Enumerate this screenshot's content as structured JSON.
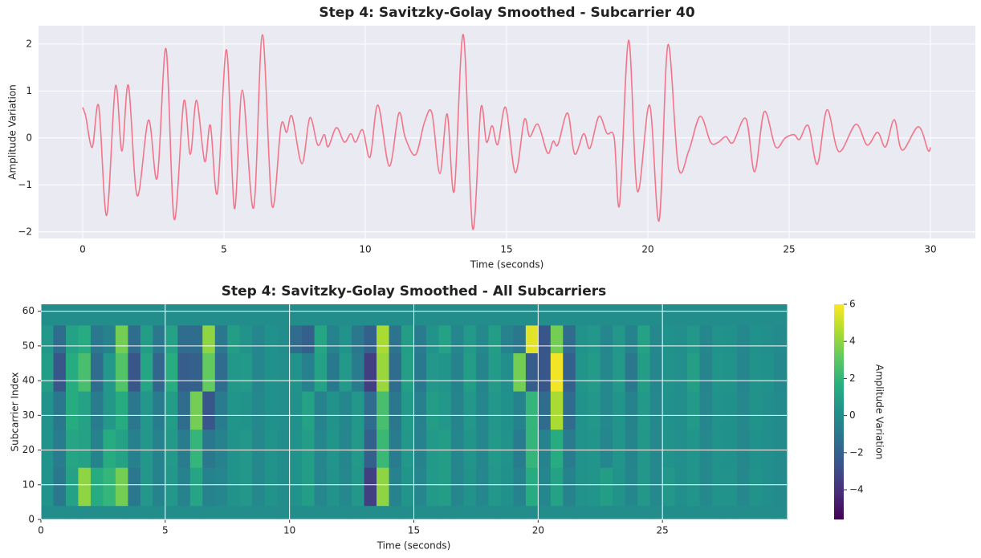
{
  "chart_data": [
    {
      "type": "line",
      "title": "Step 4: Savitzky-Golay Smoothed - Subcarrier 40",
      "xlabel": "Time (seconds)",
      "ylabel": "Amplitude Variation",
      "color": "#f37589",
      "grid": true,
      "xlim": [
        -1.56,
        31.59
      ],
      "ylim": [
        -2.14,
        2.39
      ],
      "xticks": [
        0,
        5,
        10,
        15,
        20,
        25,
        30
      ],
      "yticks": [
        {
          "value": -2,
          "label": "−2"
        },
        {
          "value": -1,
          "label": "−1"
        },
        0,
        1,
        2
      ],
      "x": [
        0,
        0.11,
        0.34,
        0.57,
        0.85,
        1.16,
        1.39,
        1.62,
        1.93,
        2.33,
        2.64,
        2.95,
        3.24,
        3.58,
        3.81,
        4.03,
        4.32,
        4.52,
        4.77,
        5.09,
        5.37,
        5.65,
        6.05,
        6.36,
        6.7,
        7.02,
        7.22,
        7.41,
        7.76,
        8.04,
        8.32,
        8.55,
        8.69,
        8.98,
        9.26,
        9.49,
        9.66,
        9.91,
        10.17,
        10.45,
        10.85,
        11.19,
        11.42,
        11.78,
        12.1,
        12.36,
        12.64,
        12.9,
        13.15,
        13.47,
        13.8,
        14.09,
        14.29,
        14.49,
        14.69,
        14.97,
        15.31,
        15.63,
        15.82,
        16.11,
        16.45,
        16.65,
        16.82,
        17.16,
        17.41,
        17.73,
        17.95,
        18.27,
        18.55,
        18.81,
        19.0,
        19.32,
        19.63,
        20.06,
        20.4,
        20.71,
        21.08,
        21.45,
        21.85,
        22.22,
        22.47,
        22.76,
        23.01,
        23.47,
        23.78,
        24.12,
        24.52,
        24.86,
        25.17,
        25.37,
        25.68,
        26.0,
        26.34,
        26.76,
        27.36,
        27.76,
        28.13,
        28.41,
        28.72,
        29.0,
        29.57,
        29.91,
        30.0
      ],
      "values": [
        0.65,
        0.46,
        -0.2,
        0.68,
        -1.65,
        1.1,
        -0.28,
        1.12,
        -1.23,
        0.38,
        -0.85,
        1.9,
        -1.73,
        0.78,
        -0.35,
        0.8,
        -0.5,
        0.27,
        -1.17,
        1.88,
        -1.5,
        1.02,
        -1.49,
        2.2,
        -1.44,
        0.26,
        0.12,
        0.46,
        -0.55,
        0.43,
        -0.15,
        0.07,
        -0.19,
        0.22,
        -0.09,
        0.09,
        -0.09,
        0.17,
        -0.41,
        0.7,
        -0.6,
        0.53,
        0,
        -0.36,
        0.34,
        0.53,
        -0.76,
        0.51,
        -1.13,
        2.2,
        -1.93,
        0.63,
        -0.09,
        0.26,
        -0.14,
        0.65,
        -0.74,
        0.39,
        0.03,
        0.29,
        -0.32,
        -0.07,
        -0.14,
        0.53,
        -0.34,
        0.09,
        -0.22,
        0.46,
        0.1,
        0,
        -1.42,
        2.08,
        -1.13,
        0.7,
        -1.76,
        1.98,
        -0.62,
        -0.27,
        0.46,
        -0.09,
        -0.1,
        0.03,
        -0.1,
        0.41,
        -0.72,
        0.56,
        -0.19,
        0,
        0.07,
        -0.03,
        0.26,
        -0.56,
        0.6,
        -0.29,
        0.29,
        -0.15,
        0.12,
        -0.19,
        0.39,
        -0.26,
        0.24,
        -0.26,
        -0.2
      ]
    },
    {
      "type": "heatmap",
      "title": "Step 4: Savitzky-Golay Smoothed - All Subcarriers",
      "xlabel": "Time (seconds)",
      "ylabel": "Subcarrier Index",
      "colorbar_label": "Amplitude Variation",
      "colormap": "viridis",
      "grid": true,
      "xlim": [
        0,
        30
      ],
      "ylim": [
        0,
        62
      ],
      "xticks": [
        0,
        5,
        10,
        15,
        20,
        25
      ],
      "yticks": [
        0,
        10,
        20,
        30,
        40,
        50,
        60
      ],
      "zlim": [
        -5.6,
        6
      ],
      "zticks": [
        {
          "value": -4,
          "label": "−4"
        },
        {
          "value": -2,
          "label": "−2"
        },
        0,
        2,
        4,
        6
      ],
      "x_bins": [
        0,
        0.5,
        1,
        1.5,
        2,
        2.5,
        3,
        3.5,
        4,
        4.5,
        5,
        5.5,
        6,
        6.5,
        7,
        7.5,
        8,
        8.5,
        9,
        9.5,
        10,
        10.5,
        11,
        11.5,
        12,
        12.5,
        13,
        13.5,
        14,
        14.5,
        15,
        15.5,
        16,
        16.5,
        17,
        17.5,
        18,
        18.5,
        19,
        19.5,
        20,
        20.5,
        21,
        21.5,
        22,
        22.5,
        23,
        23.5,
        24,
        24.5,
        25,
        25.5,
        26,
        26.5,
        27,
        27.5,
        28,
        28.5,
        29,
        29.5,
        30
      ],
      "y_bins": [
        0,
        4,
        15,
        26,
        37,
        48,
        56,
        62
      ],
      "z": [
        [
          0,
          0,
          0,
          0,
          0,
          0,
          0,
          0,
          0,
          0,
          0,
          0,
          0,
          0,
          0,
          0,
          0,
          0,
          0,
          0,
          0,
          0,
          0,
          0,
          0,
          0,
          0,
          0,
          0,
          0,
          0,
          0,
          0,
          0,
          0,
          0,
          0,
          0,
          0,
          0,
          0,
          0,
          0,
          0,
          0,
          0,
          0,
          0,
          0,
          0,
          0,
          0,
          0,
          0,
          0,
          0,
          0,
          0,
          0,
          0
        ],
        [
          0.3,
          -1.0,
          1.0,
          4.0,
          1.5,
          2.0,
          3.5,
          -1.0,
          0.5,
          -0.5,
          0.5,
          -0.5,
          1.2,
          -0.5,
          -0.3,
          0.3,
          0.5,
          -0.2,
          0.3,
          0.0,
          0.3,
          0.8,
          -0.3,
          0.3,
          -0.2,
          0.5,
          -3.5,
          4.0,
          -0.5,
          0.4,
          -0.3,
          0.6,
          0.8,
          -0.3,
          0.3,
          -0.3,
          0.5,
          0.2,
          -0.5,
          1.5,
          -0.3,
          1.0,
          -0.5,
          0.3,
          0.4,
          0.8,
          0.3,
          -0.3,
          0.5,
          -0.2,
          0.5,
          0.1,
          0.4,
          -0.2,
          0.3,
          0.3,
          -0.2,
          0.3,
          0.1,
          -0.1
        ],
        [
          0.3,
          -0.8,
          1.2,
          1.0,
          -0.5,
          1.5,
          1.0,
          -0.6,
          0.5,
          -0.5,
          0.6,
          -0.8,
          2.0,
          -1.0,
          -0.5,
          0.3,
          0.5,
          -0.2,
          0.3,
          0.0,
          0.3,
          0.8,
          -0.3,
          0.4,
          -0.3,
          0.6,
          -2.0,
          2.2,
          -0.8,
          0.5,
          -0.5,
          0.6,
          0.8,
          -0.3,
          0.4,
          -0.3,
          0.6,
          0.3,
          -0.8,
          2.0,
          -0.5,
          1.5,
          -0.8,
          0.3,
          0.4,
          -0.3,
          0.4,
          -0.4,
          0.5,
          -0.2,
          0.3,
          0.1,
          0.4,
          -0.2,
          0.3,
          0.2,
          -0.2,
          0.2,
          0.1,
          -0.1
        ],
        [
          0.3,
          -1.0,
          1.5,
          1.0,
          -0.8,
          0.5,
          1.5,
          -1.0,
          0.5,
          -0.8,
          0.8,
          -1.5,
          3.5,
          -2.5,
          -0.8,
          0.4,
          0.3,
          -0.2,
          0.2,
          0.1,
          0.2,
          1.0,
          -0.5,
          0.3,
          -0.3,
          0.5,
          -1.5,
          2.5,
          -1.0,
          0.6,
          -0.6,
          0.8,
          0.5,
          -0.4,
          0.5,
          -0.3,
          0.5,
          0.2,
          -0.5,
          2.0,
          -1.5,
          4.5,
          -1.5,
          0.3,
          0.5,
          -0.2,
          0.4,
          -0.5,
          0.6,
          -0.2,
          0.2,
          0.1,
          0.6,
          -0.3,
          0.3,
          0.2,
          -0.2,
          0.3,
          0.1,
          -0.1
        ],
        [
          0.8,
          -2.5,
          1.5,
          2.5,
          -1.5,
          0.5,
          2.8,
          -2.5,
          1.2,
          -1.8,
          1.6,
          -2.2,
          -2.0,
          3.2,
          -1.5,
          0.5,
          0.6,
          -0.3,
          0.2,
          0.1,
          0.3,
          -0.6,
          1.0,
          -0.9,
          0.6,
          -0.8,
          -3.5,
          4.2,
          -1.5,
          0.9,
          -0.9,
          0.5,
          0.4,
          -0.5,
          0.8,
          -0.4,
          0.7,
          0.1,
          3.5,
          -2.2,
          -2.5,
          5.8,
          -2.0,
          0.4,
          0.7,
          -0.2,
          0.6,
          -1.0,
          0.8,
          -0.3,
          0.3,
          0.1,
          0.9,
          -0.4,
          0.4,
          0.3,
          -0.3,
          0.3,
          0.2,
          -0.2
        ],
        [
          0.5,
          -1.5,
          1.0,
          1.5,
          -1.0,
          -0.5,
          3.5,
          -1.5,
          0.8,
          -1.0,
          1.0,
          -1.5,
          -1.5,
          4.0,
          -1.0,
          0.8,
          0.3,
          -0.3,
          0.2,
          0.0,
          -1.5,
          -2.0,
          1.2,
          -0.5,
          0.3,
          -1.0,
          -2.0,
          4.5,
          -1.2,
          0.8,
          -0.8,
          0.3,
          1.0,
          -0.3,
          0.6,
          -0.2,
          0.8,
          -0.5,
          -1.0,
          5.5,
          -2.5,
          3.5,
          -1.5,
          0.3,
          0.5,
          -0.3,
          0.5,
          -0.5,
          1.0,
          -0.2,
          0.2,
          0.1,
          0.5,
          -0.3,
          0.3,
          0.2,
          -0.2,
          0.2,
          0.1,
          -0.1
        ],
        [
          0,
          0,
          0,
          0,
          0,
          0,
          0,
          0,
          0,
          0,
          0,
          0,
          0,
          0,
          0,
          0,
          0,
          0,
          0,
          0,
          0,
          0,
          0,
          0,
          0,
          0,
          0,
          0,
          0,
          0,
          0,
          0,
          0,
          0,
          0,
          0,
          0,
          0,
          0,
          0,
          0,
          0,
          0,
          0,
          0,
          0,
          0,
          0,
          0,
          0,
          0,
          0,
          0,
          0,
          0,
          0,
          0,
          0,
          0,
          0
        ]
      ]
    }
  ]
}
